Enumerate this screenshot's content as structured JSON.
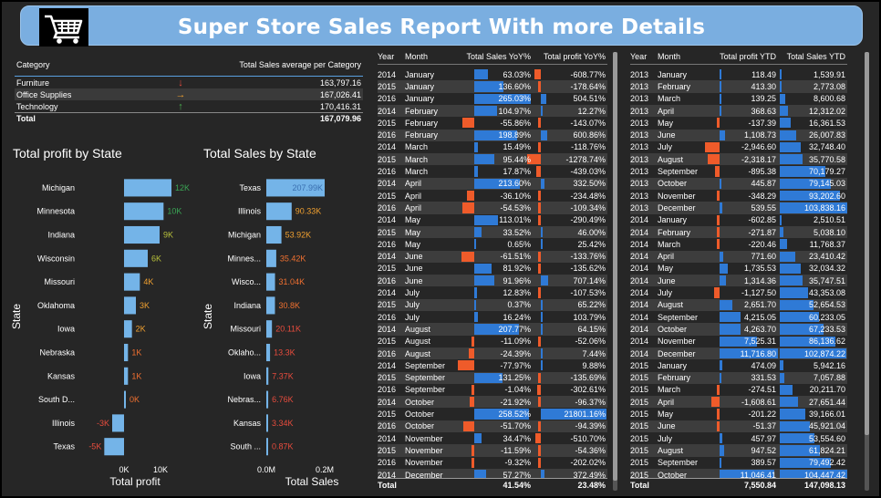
{
  "header": {
    "title": "Super Store Sales Report With more Details",
    "logo_icon": "shopping-cart-icon"
  },
  "category_table": {
    "headers": [
      "Category",
      "Total Sales average per Category"
    ],
    "rows": [
      {
        "category": "Furniture",
        "trend": "down",
        "trend_icon": "arrow-down-icon",
        "trend_color": "#e84c3d",
        "value": "163,797.16"
      },
      {
        "category": "Office Supplies",
        "trend": "flat",
        "trend_icon": "arrow-right-icon",
        "trend_color": "#f0a030",
        "value": "167,026.41"
      },
      {
        "category": "Technology",
        "trend": "up",
        "trend_icon": "arrow-up-icon",
        "trend_color": "#4caf50",
        "value": "170,416.31"
      }
    ],
    "total": {
      "label": "Total",
      "value": "167,079.96"
    }
  },
  "chart_data": [
    {
      "type": "bar",
      "orientation": "horizontal",
      "title": "Total profit by State",
      "xlabel": "Total profit",
      "ylabel": "State",
      "categories": [
        "Michigan",
        "Minnesota",
        "Indiana",
        "Wisconsin",
        "Missouri",
        "Oklahoma",
        "Iowa",
        "Nebraska",
        "Kansas",
        "South D...",
        "Illinois",
        "Texas"
      ],
      "values": [
        12000,
        10000,
        9000,
        6000,
        4000,
        3000,
        2000,
        1000,
        1000,
        200,
        -3000,
        -5000
      ],
      "data_labels": [
        "12K",
        "10K",
        "9K",
        "6K",
        "4K",
        "3K",
        "2K",
        "1K",
        "1K",
        "0K",
        "-3K",
        "-5K"
      ],
      "label_colors": [
        "#3aa655",
        "#3aa655",
        "#b8c03a",
        "#b8c03a",
        "#f0a030",
        "#f0a030",
        "#f0a030",
        "#f07030",
        "#f07030",
        "#f07030",
        "#e84c3d",
        "#e84c3d"
      ],
      "xlim": [
        -5000,
        10000
      ],
      "x_ticks": [
        "0K",
        "10K"
      ],
      "bar_color": "#74b4e8"
    },
    {
      "type": "bar",
      "orientation": "horizontal",
      "title": "Total Sales by State",
      "xlabel": "Total Sales",
      "ylabel": "State",
      "categories": [
        "Texas",
        "Illinois",
        "Michigan",
        "Minnes...",
        "Wisco...",
        "Indiana",
        "Missouri",
        "Oklaho...",
        "Iowa",
        "Nebras...",
        "Kansas",
        "South ..."
      ],
      "values": [
        207990,
        90330,
        53920,
        35420,
        31040,
        30800,
        20110,
        13300,
        7370,
        6760,
        3340,
        870
      ],
      "data_labels": [
        "207.99K",
        "90.33K",
        "53.92K",
        "35.42K",
        "31.04K",
        "30.8K",
        "20.11K",
        "13.3K",
        "7.37K",
        "6.76K",
        "3.34K",
        "0.87K"
      ],
      "label_colors": [
        "#3a6fb0",
        "#f0a030",
        "#f0a030",
        "#f07030",
        "#f07030",
        "#f07030",
        "#e84c3d",
        "#e84c3d",
        "#e84c3d",
        "#e84c3d",
        "#e84c3d",
        "#e84c3d"
      ],
      "xlim": [
        0,
        200000
      ],
      "x_ticks": [
        "0.0M",
        "0.2M"
      ],
      "bar_color": "#74b4e8"
    }
  ],
  "yoy_table": {
    "headers": [
      "Year",
      "Month",
      "Total Sales YoY%",
      "Total profit YoY%"
    ],
    "rows": [
      [
        "2014",
        "January",
        "63.03%",
        "-608.77%"
      ],
      [
        "2015",
        "January",
        "136.60%",
        "-178.64%"
      ],
      [
        "2016",
        "January",
        "265.03%",
        "504.51%"
      ],
      [
        "2014",
        "February",
        "104.97%",
        "12.27%"
      ],
      [
        "2015",
        "February",
        "-55.86%",
        "-143.07%"
      ],
      [
        "2016",
        "February",
        "198.89%",
        "600.86%"
      ],
      [
        "2014",
        "March",
        "15.49%",
        "-118.76%"
      ],
      [
        "2015",
        "March",
        "95.44%",
        "-1278.74%"
      ],
      [
        "2016",
        "March",
        "17.87%",
        "-439.03%"
      ],
      [
        "2014",
        "April",
        "213.60%",
        "332.50%"
      ],
      [
        "2015",
        "April",
        "-36.10%",
        "-234.48%"
      ],
      [
        "2016",
        "April",
        "-54.53%",
        "-109.34%"
      ],
      [
        "2014",
        "May",
        "113.01%",
        "-290.49%"
      ],
      [
        "2015",
        "May",
        "33.52%",
        "46.00%"
      ],
      [
        "2016",
        "May",
        "0.65%",
        "25.42%"
      ],
      [
        "2014",
        "June",
        "-61.51%",
        "-133.76%"
      ],
      [
        "2015",
        "June",
        "81.92%",
        "-135.62%"
      ],
      [
        "2016",
        "June",
        "91.96%",
        "707.14%"
      ],
      [
        "2014",
        "July",
        "12.83%",
        "-107.53%"
      ],
      [
        "2015",
        "July",
        "0.37%",
        "65.22%"
      ],
      [
        "2016",
        "July",
        "16.24%",
        "103.79%"
      ],
      [
        "2014",
        "August",
        "207.77%",
        "64.15%"
      ],
      [
        "2015",
        "August",
        "-11.09%",
        "-52.06%"
      ],
      [
        "2016",
        "August",
        "-24.39%",
        "7.44%"
      ],
      [
        "2014",
        "September",
        "-77.97%",
        "9.88%"
      ],
      [
        "2015",
        "September",
        "131.25%",
        "-135.69%"
      ],
      [
        "2016",
        "September",
        "-1.04%",
        "-302.61%"
      ],
      [
        "2014",
        "October",
        "-21.92%",
        "-96.37%"
      ],
      [
        "2015",
        "October",
        "258.52%",
        "21801.16%"
      ],
      [
        "2016",
        "October",
        "-51.70%",
        "-94.39%"
      ],
      [
        "2014",
        "November",
        "34.47%",
        "-510.70%"
      ],
      [
        "2015",
        "November",
        "-11.59%",
        "-54.36%"
      ],
      [
        "2016",
        "November",
        "-9.32%",
        "-202.02%"
      ],
      [
        "2014",
        "December",
        "57.27%",
        "372.49%"
      ]
    ],
    "total": [
      "Total",
      "",
      "41.54%",
      "23.48%"
    ]
  },
  "ytd_table": {
    "headers": [
      "Year",
      "Month",
      "Total profit YTD",
      "Total Sales YTD"
    ],
    "rows": [
      [
        "2013",
        "January",
        "118.49",
        "1,539.91"
      ],
      [
        "2013",
        "February",
        "413.30",
        "2,773.08"
      ],
      [
        "2013",
        "March",
        "139.25",
        "8,600.68"
      ],
      [
        "2013",
        "April",
        "368.63",
        "12,312.02"
      ],
      [
        "2013",
        "May",
        "-137.39",
        "16,361.53"
      ],
      [
        "2013",
        "June",
        "1,108.73",
        "26,007.83"
      ],
      [
        "2013",
        "July",
        "-2,946.60",
        "32,748.40"
      ],
      [
        "2013",
        "August",
        "-2,318.17",
        "35,770.58"
      ],
      [
        "2013",
        "September",
        "-895.38",
        "70,179.27"
      ],
      [
        "2013",
        "October",
        "445.87",
        "79,145.03"
      ],
      [
        "2013",
        "November",
        "-348.29",
        "93,202.60"
      ],
      [
        "2013",
        "December",
        "539.55",
        "103,838.16"
      ],
      [
        "2014",
        "January",
        "-602.85",
        "2,510.51"
      ],
      [
        "2014",
        "February",
        "-271.87",
        "5,038.10"
      ],
      [
        "2014",
        "March",
        "-220.46",
        "11,768.37"
      ],
      [
        "2014",
        "April",
        "771.60",
        "23,410.42"
      ],
      [
        "2014",
        "May",
        "1,735.53",
        "32,034.32"
      ],
      [
        "2014",
        "June",
        "1,314.36",
        "35,747.51"
      ],
      [
        "2014",
        "July",
        "-1,127.50",
        "43,353.08"
      ],
      [
        "2014",
        "August",
        "2,651.70",
        "52,654.53"
      ],
      [
        "2014",
        "September",
        "4,215.05",
        "60,233.05"
      ],
      [
        "2014",
        "October",
        "4,263.70",
        "67,233.53"
      ],
      [
        "2014",
        "November",
        "7,525.31",
        "86,136.62"
      ],
      [
        "2014",
        "December",
        "11,716.80",
        "102,874.22"
      ],
      [
        "2015",
        "January",
        "474.09",
        "5,942.16"
      ],
      [
        "2015",
        "February",
        "331.53",
        "7,057.88"
      ],
      [
        "2015",
        "March",
        "-274.51",
        "20,211.70"
      ],
      [
        "2015",
        "April",
        "-1,608.61",
        "27,651.44"
      ],
      [
        "2015",
        "May",
        "-201.22",
        "39,166.01"
      ],
      [
        "2015",
        "June",
        "-51.37",
        "45,921.04"
      ],
      [
        "2015",
        "July",
        "457.97",
        "53,554.60"
      ],
      [
        "2015",
        "August",
        "947.52",
        "61,824.21"
      ],
      [
        "2015",
        "September",
        "389.57",
        "79,492.42"
      ],
      [
        "2015",
        "October",
        "11,046.41",
        "104,447.42"
      ]
    ],
    "total": [
      "Total",
      "",
      "7,550.84",
      "147,098.13"
    ]
  }
}
